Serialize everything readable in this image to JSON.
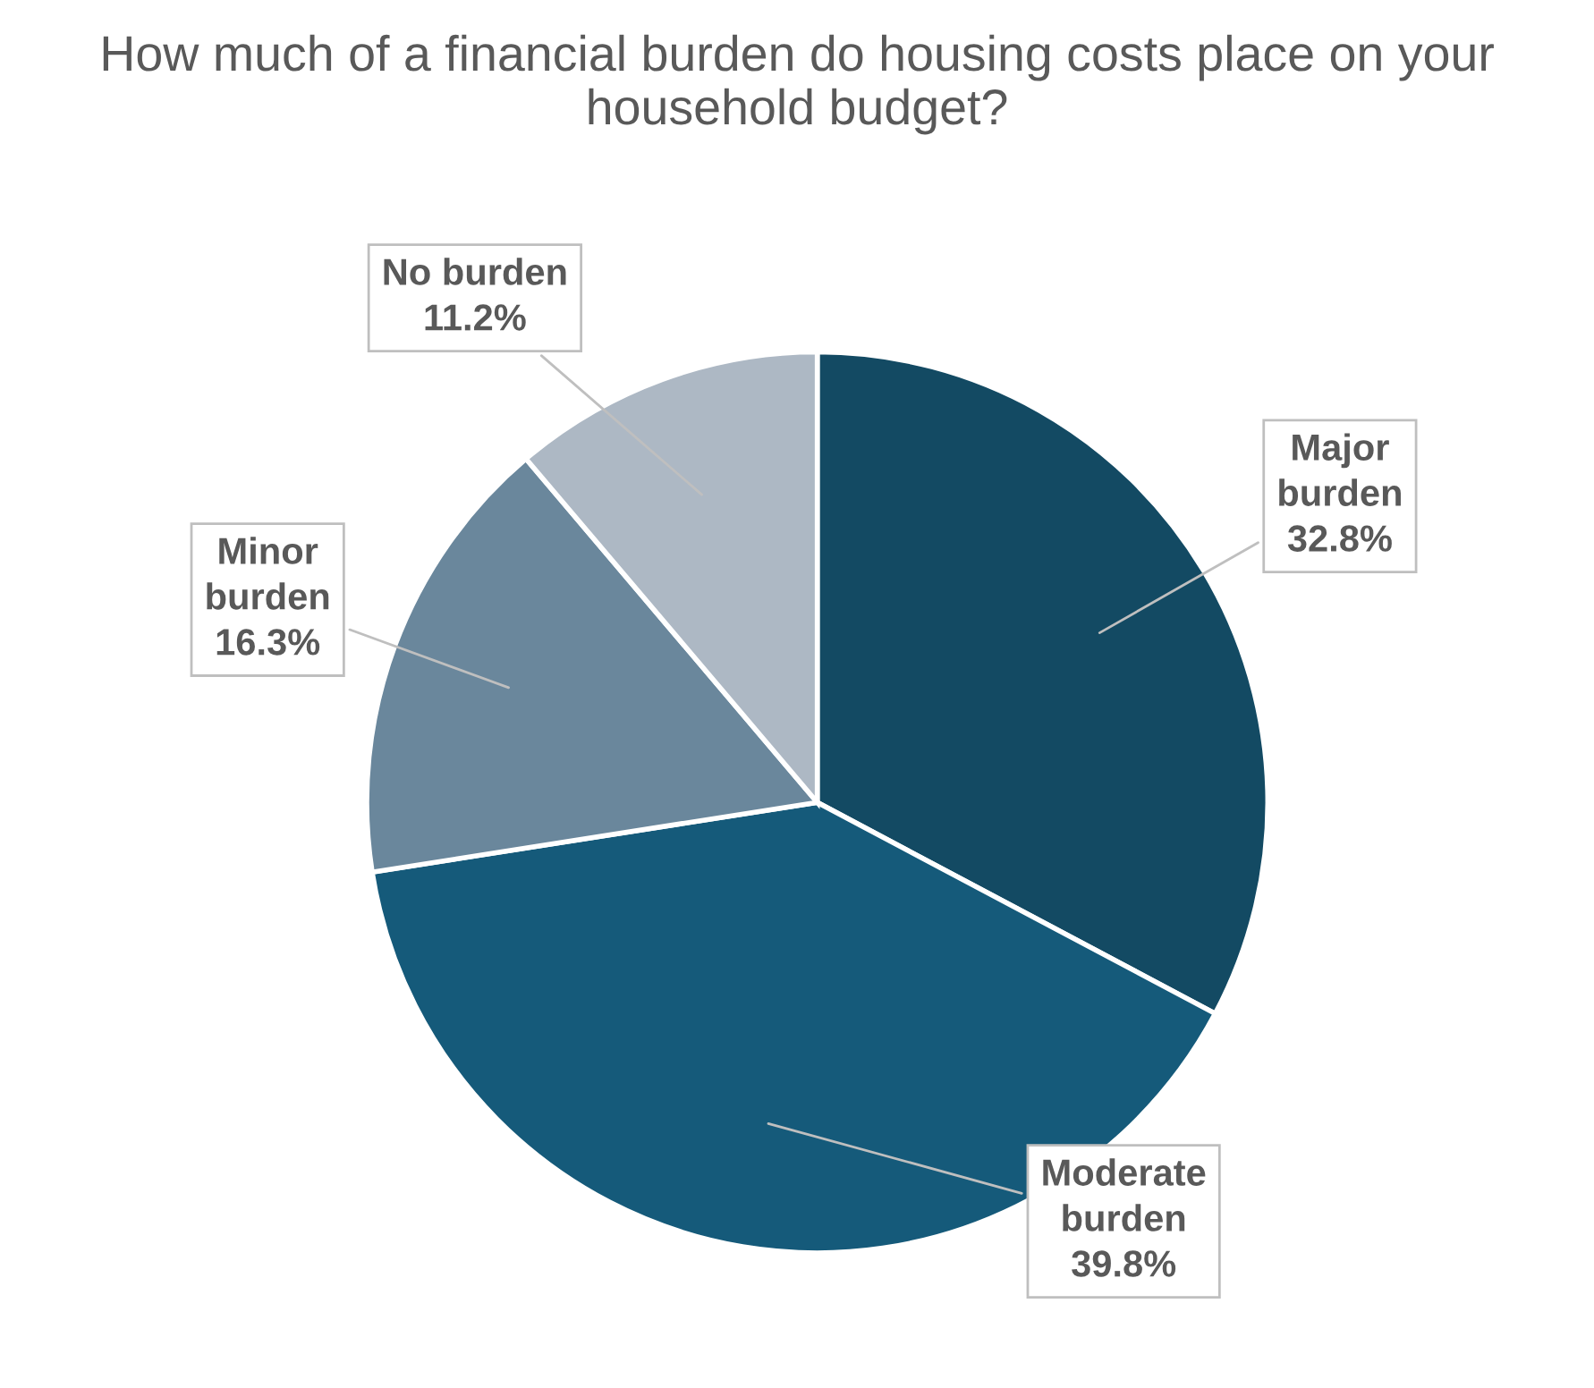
{
  "chart_data": {
    "type": "pie",
    "title": "How much of a financial burden do housing costs place on your household budget?",
    "categories": [
      "Major burden",
      "Moderate burden",
      "Minor burden",
      "No burden"
    ],
    "values": [
      32.8,
      39.8,
      16.3,
      11.2
    ],
    "value_labels": [
      "32.8%",
      "39.8%",
      "16.3%",
      "11.2%"
    ],
    "colors": [
      "#134a63",
      "#155a7a",
      "#6a879c",
      "#adb8c4"
    ]
  }
}
